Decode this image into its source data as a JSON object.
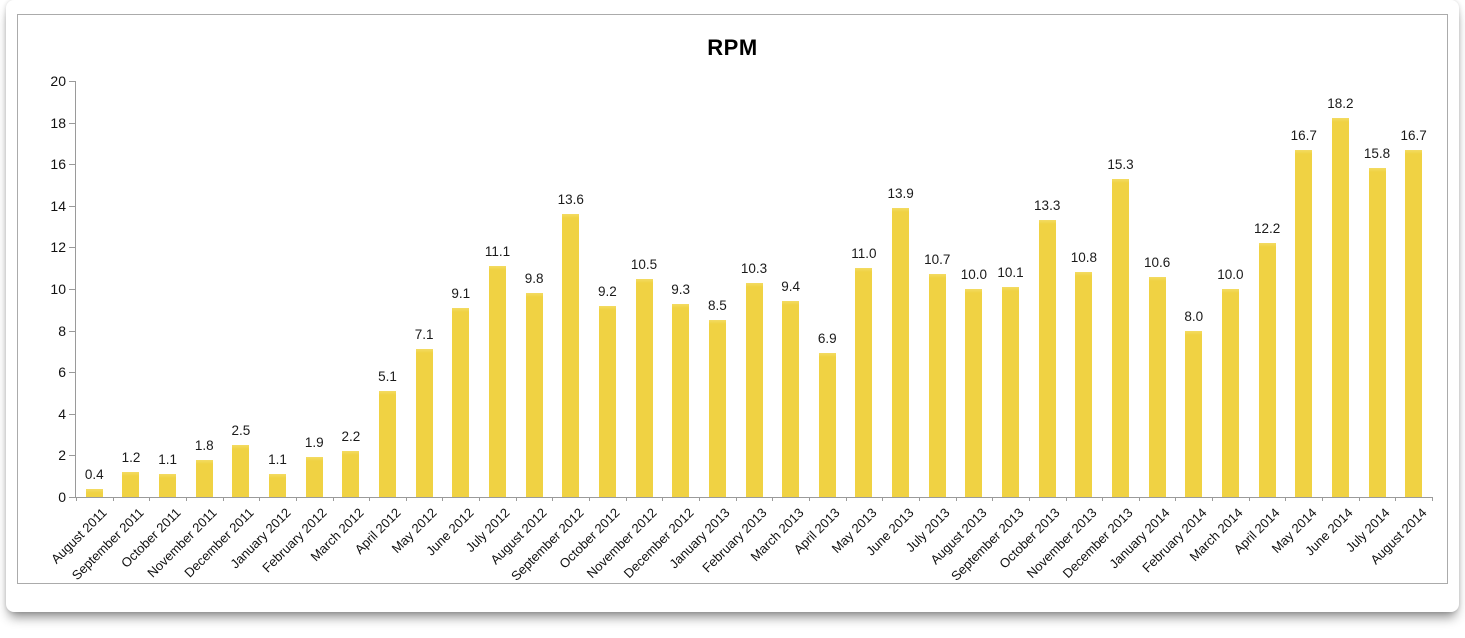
{
  "page": {
    "title": "RPM"
  },
  "chart_data": {
    "type": "bar",
    "title": "RPM",
    "xlabel": "",
    "ylabel": "",
    "ylim": [
      0,
      20
    ],
    "ytick_step": 2,
    "grid": false,
    "legend_position": "none",
    "value_labels": true,
    "bar_color": "#F0D243",
    "axis_color": "#9a9a9a",
    "text_color": "#111111",
    "categories": [
      "August 2011",
      "September 2011",
      "October 2011",
      "November 2011",
      "December 2011",
      "January 2012",
      "February 2012",
      "March 2012",
      "April 2012",
      "May 2012",
      "June 2012",
      "July 2012",
      "August 2012",
      "September 2012",
      "October 2012",
      "November 2012",
      "December 2012",
      "January 2013",
      "February 2013",
      "March 2013",
      "April 2013",
      "May 2013",
      "June 2013",
      "July 2013",
      "August 2013",
      "September 2013",
      "October 2013",
      "November 2013",
      "December 2013",
      "January 2014",
      "February 2014",
      "March 2014",
      "April 2014",
      "May 2014",
      "June 2014",
      "July 2014",
      "August 2014"
    ],
    "values": [
      0.4,
      1.2,
      1.1,
      1.8,
      2.5,
      1.1,
      1.9,
      2.2,
      5.1,
      7.1,
      9.1,
      11.1,
      9.8,
      13.6,
      9.2,
      10.5,
      9.3,
      8.5,
      10.3,
      9.4,
      6.9,
      11.0,
      13.9,
      10.7,
      10.0,
      10.1,
      13.3,
      10.8,
      15.3,
      10.6,
      8.0,
      10.0,
      12.2,
      16.7,
      18.2,
      15.8,
      16.7
    ],
    "value_label_format": "one_decimal"
  }
}
